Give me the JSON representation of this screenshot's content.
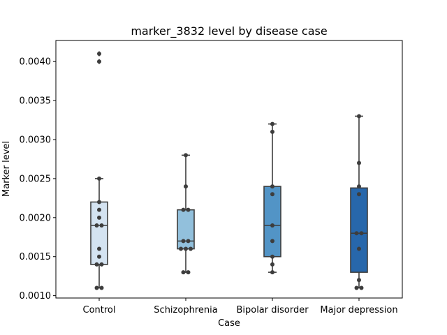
{
  "chart_data": {
    "type": "box",
    "title": "marker_3832 level by disease case",
    "xlabel": "Case",
    "ylabel": "Marker level",
    "ylim": [
      0.00097,
      0.00427
    ],
    "yticks": [
      0.001,
      0.0015,
      0.002,
      0.0025,
      0.003,
      0.0035,
      0.004
    ],
    "ytick_labels": [
      "0.0010",
      "0.0015",
      "0.0020",
      "0.0025",
      "0.0030",
      "0.0035",
      "0.0040"
    ],
    "grid": false,
    "categories": [
      "Control",
      "Schizophrenia",
      "Bipolar disorder",
      "Major depression"
    ],
    "colors": [
      "#d4e3f1",
      "#92c0dc",
      "#5294c6",
      "#2767ab"
    ],
    "boxes": [
      {
        "q1": 0.0014,
        "median": 0.0019,
        "q3": 0.0022,
        "whisker_low": 0.0011,
        "whisker_high": 0.0025,
        "outliers": [
          0.0041,
          0.004
        ]
      },
      {
        "q1": 0.0016,
        "median": 0.0017,
        "q3": 0.0021,
        "whisker_low": 0.0013,
        "whisker_high": 0.0028,
        "outliers": []
      },
      {
        "q1": 0.0015,
        "median": 0.0019,
        "q3": 0.0024,
        "whisker_low": 0.0013,
        "whisker_high": 0.0032,
        "outliers": []
      },
      {
        "q1": 0.0013,
        "median": 0.0018,
        "q3": 0.00238,
        "whisker_low": 0.0011,
        "whisker_high": 0.0033,
        "outliers": []
      }
    ],
    "points": [
      [
        0.0011,
        0.0011,
        0.0014,
        0.0014,
        0.0015,
        0.0016,
        0.0019,
        0.0019,
        0.002,
        0.0021,
        0.0022,
        0.0025,
        0.004,
        0.0041
      ],
      [
        0.0013,
        0.0013,
        0.0016,
        0.0016,
        0.0016,
        0.0017,
        0.0017,
        0.0021,
        0.0021,
        0.0024,
        0.0028
      ],
      [
        0.0013,
        0.0014,
        0.0015,
        0.0017,
        0.0019,
        0.0023,
        0.0024,
        0.0031,
        0.0032
      ],
      [
        0.0011,
        0.0011,
        0.0012,
        0.0016,
        0.0018,
        0.0018,
        0.0023,
        0.0024,
        0.0027,
        0.0033
      ]
    ]
  }
}
